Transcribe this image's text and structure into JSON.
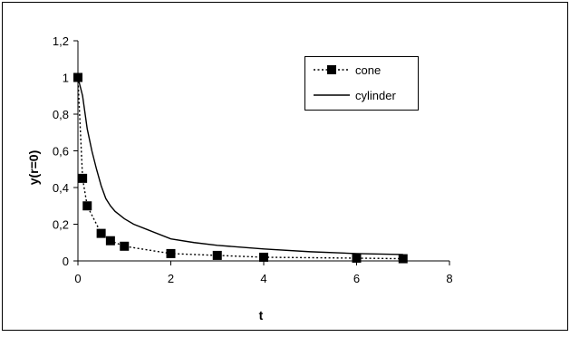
{
  "chart_data": {
    "type": "line",
    "xlabel": "t",
    "ylabel": "y(r=0)",
    "xlim": [
      0,
      8
    ],
    "ylim": [
      0,
      1.2
    ],
    "x_ticks": [
      0,
      2,
      4,
      6,
      8
    ],
    "x_tick_labels": [
      "0",
      "2",
      "4",
      "6",
      "8"
    ],
    "y_ticks": [
      0,
      0.2,
      0.4,
      0.6,
      0.8,
      1.0,
      1.2
    ],
    "y_tick_labels": [
      "0",
      "0,2",
      "0,4",
      "0,6",
      "0,8",
      "1",
      "1,2"
    ],
    "grid": false,
    "legend_position": "top-right",
    "series": [
      {
        "name": "cone",
        "style": "dotted-with-square-markers",
        "color": "#000000",
        "x": [
          0,
          0.1,
          0.2,
          0.5,
          0.7,
          1.0,
          2.0,
          3.0,
          4.0,
          6.0,
          7.0
        ],
        "y": [
          1.0,
          0.45,
          0.3,
          0.15,
          0.11,
          0.08,
          0.04,
          0.03,
          0.02,
          0.015,
          0.012
        ]
      },
      {
        "name": "cylinder",
        "style": "solid",
        "color": "#000000",
        "x": [
          0,
          0.1,
          0.2,
          0.3,
          0.4,
          0.5,
          0.6,
          0.7,
          0.8,
          1.0,
          1.2,
          1.5,
          2.0,
          2.5,
          3.0,
          4.0,
          5.0,
          6.0,
          7.0
        ],
        "y": [
          1.0,
          0.9,
          0.72,
          0.6,
          0.5,
          0.41,
          0.34,
          0.3,
          0.27,
          0.23,
          0.2,
          0.17,
          0.12,
          0.1,
          0.085,
          0.065,
          0.05,
          0.04,
          0.035
        ]
      }
    ]
  }
}
